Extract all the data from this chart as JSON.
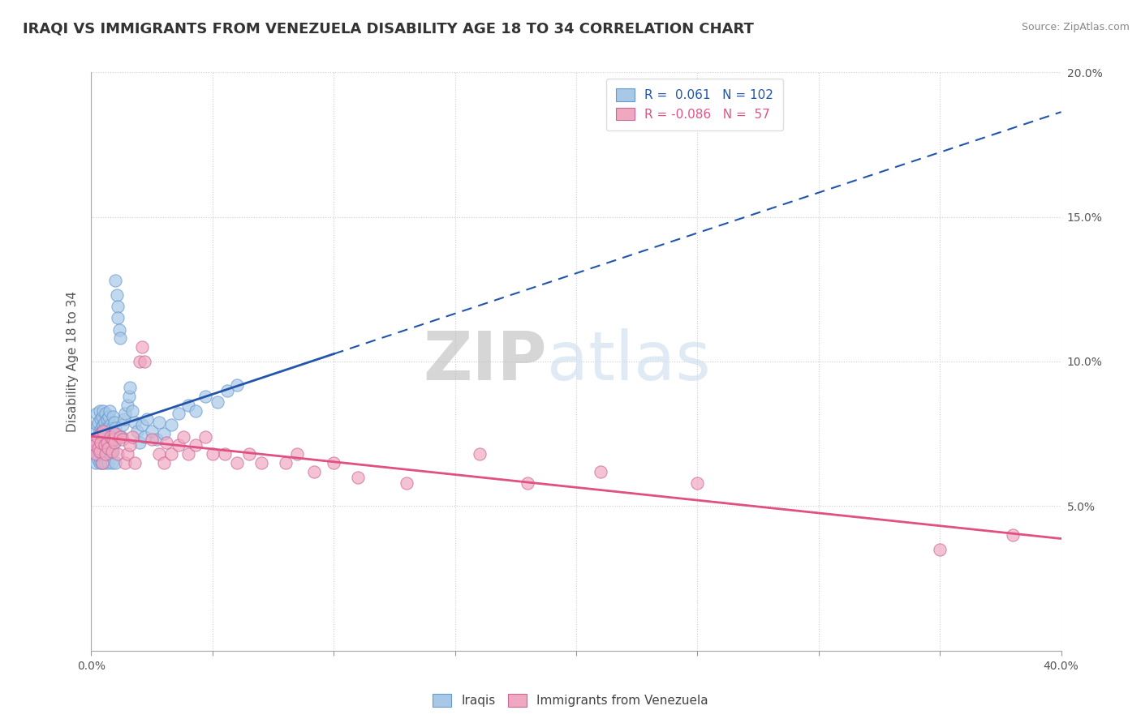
{
  "title": "IRAQI VS IMMIGRANTS FROM VENEZUELA DISABILITY AGE 18 TO 34 CORRELATION CHART",
  "source": "Source: ZipAtlas.com",
  "ylabel": "Disability Age 18 to 34",
  "xlim": [
    0.0,
    0.4
  ],
  "ylim": [
    0.0,
    0.2
  ],
  "xticks": [
    0.0,
    0.05,
    0.1,
    0.15,
    0.2,
    0.25,
    0.3,
    0.35,
    0.4
  ],
  "yticks": [
    0.0,
    0.05,
    0.1,
    0.15,
    0.2
  ],
  "legend_blue_r": "0.061",
  "legend_blue_n": "102",
  "legend_pink_r": "-0.086",
  "legend_pink_n": "57",
  "blue_color": "#A8C8E8",
  "pink_color": "#F0A8C0",
  "blue_line_color": "#2255AA",
  "pink_line_color": "#E05080",
  "watermark": "ZIPatlas",
  "background_color": "#FFFFFF",
  "title_fontsize": 13,
  "axis_label_fontsize": 11,
  "tick_fontsize": 10,
  "iraqis_x": [
    0.001,
    0.0015,
    0.0018,
    0.002,
    0.0022,
    0.0025,
    0.0025,
    0.0028,
    0.003,
    0.003,
    0.003,
    0.0032,
    0.0033,
    0.0035,
    0.0035,
    0.0035,
    0.0038,
    0.004,
    0.004,
    0.004,
    0.004,
    0.0042,
    0.0043,
    0.0045,
    0.0045,
    0.0045,
    0.0045,
    0.0048,
    0.005,
    0.005,
    0.005,
    0.005,
    0.005,
    0.0052,
    0.0053,
    0.0055,
    0.0055,
    0.0055,
    0.0058,
    0.006,
    0.006,
    0.006,
    0.006,
    0.0063,
    0.0065,
    0.0065,
    0.0068,
    0.007,
    0.007,
    0.007,
    0.0072,
    0.0075,
    0.0075,
    0.0075,
    0.0078,
    0.008,
    0.008,
    0.008,
    0.0082,
    0.0085,
    0.0085,
    0.0088,
    0.009,
    0.009,
    0.0092,
    0.0095,
    0.0095,
    0.0098,
    0.01,
    0.01,
    0.01,
    0.0105,
    0.0108,
    0.011,
    0.0115,
    0.012,
    0.0125,
    0.013,
    0.0135,
    0.014,
    0.015,
    0.0155,
    0.016,
    0.017,
    0.018,
    0.019,
    0.02,
    0.021,
    0.022,
    0.023,
    0.025,
    0.027,
    0.028,
    0.03,
    0.033,
    0.036,
    0.04,
    0.043,
    0.047,
    0.052,
    0.056,
    0.06
  ],
  "iraqis_y": [
    0.075,
    0.07,
    0.065,
    0.072,
    0.082,
    0.068,
    0.078,
    0.074,
    0.071,
    0.066,
    0.079,
    0.073,
    0.069,
    0.076,
    0.083,
    0.065,
    0.072,
    0.068,
    0.075,
    0.08,
    0.071,
    0.077,
    0.065,
    0.073,
    0.081,
    0.069,
    0.076,
    0.072,
    0.068,
    0.078,
    0.074,
    0.071,
    0.083,
    0.067,
    0.075,
    0.072,
    0.079,
    0.065,
    0.077,
    0.073,
    0.069,
    0.076,
    0.082,
    0.068,
    0.074,
    0.08,
    0.071,
    0.077,
    0.065,
    0.073,
    0.081,
    0.069,
    0.076,
    0.083,
    0.072,
    0.068,
    0.078,
    0.074,
    0.071,
    0.077,
    0.065,
    0.073,
    0.081,
    0.069,
    0.076,
    0.072,
    0.079,
    0.065,
    0.077,
    0.073,
    0.128,
    0.123,
    0.119,
    0.115,
    0.111,
    0.108,
    0.074,
    0.078,
    0.08,
    0.082,
    0.085,
    0.088,
    0.091,
    0.083,
    0.079,
    0.076,
    0.072,
    0.078,
    0.074,
    0.08,
    0.076,
    0.073,
    0.079,
    0.075,
    0.078,
    0.082,
    0.085,
    0.083,
    0.088,
    0.086,
    0.09,
    0.092
  ],
  "venezuela_x": [
    0.001,
    0.0015,
    0.002,
    0.0025,
    0.003,
    0.0035,
    0.0038,
    0.004,
    0.0045,
    0.005,
    0.0055,
    0.006,
    0.0065,
    0.007,
    0.008,
    0.0085,
    0.009,
    0.0095,
    0.01,
    0.011,
    0.012,
    0.013,
    0.014,
    0.015,
    0.016,
    0.017,
    0.018,
    0.02,
    0.021,
    0.022,
    0.025,
    0.028,
    0.03,
    0.031,
    0.033,
    0.036,
    0.038,
    0.04,
    0.043,
    0.047,
    0.05,
    0.055,
    0.06,
    0.065,
    0.07,
    0.08,
    0.085,
    0.092,
    0.1,
    0.11,
    0.13,
    0.16,
    0.18,
    0.21,
    0.25,
    0.35,
    0.38
  ],
  "venezuela_y": [
    0.073,
    0.071,
    0.068,
    0.074,
    0.07,
    0.069,
    0.075,
    0.072,
    0.065,
    0.076,
    0.071,
    0.068,
    0.072,
    0.07,
    0.074,
    0.069,
    0.073,
    0.072,
    0.075,
    0.068,
    0.074,
    0.073,
    0.065,
    0.068,
    0.071,
    0.074,
    0.065,
    0.1,
    0.105,
    0.1,
    0.073,
    0.068,
    0.065,
    0.072,
    0.068,
    0.071,
    0.074,
    0.068,
    0.071,
    0.074,
    0.068,
    0.068,
    0.065,
    0.068,
    0.065,
    0.065,
    0.068,
    0.062,
    0.065,
    0.06,
    0.058,
    0.068,
    0.058,
    0.062,
    0.058,
    0.035,
    0.04
  ]
}
